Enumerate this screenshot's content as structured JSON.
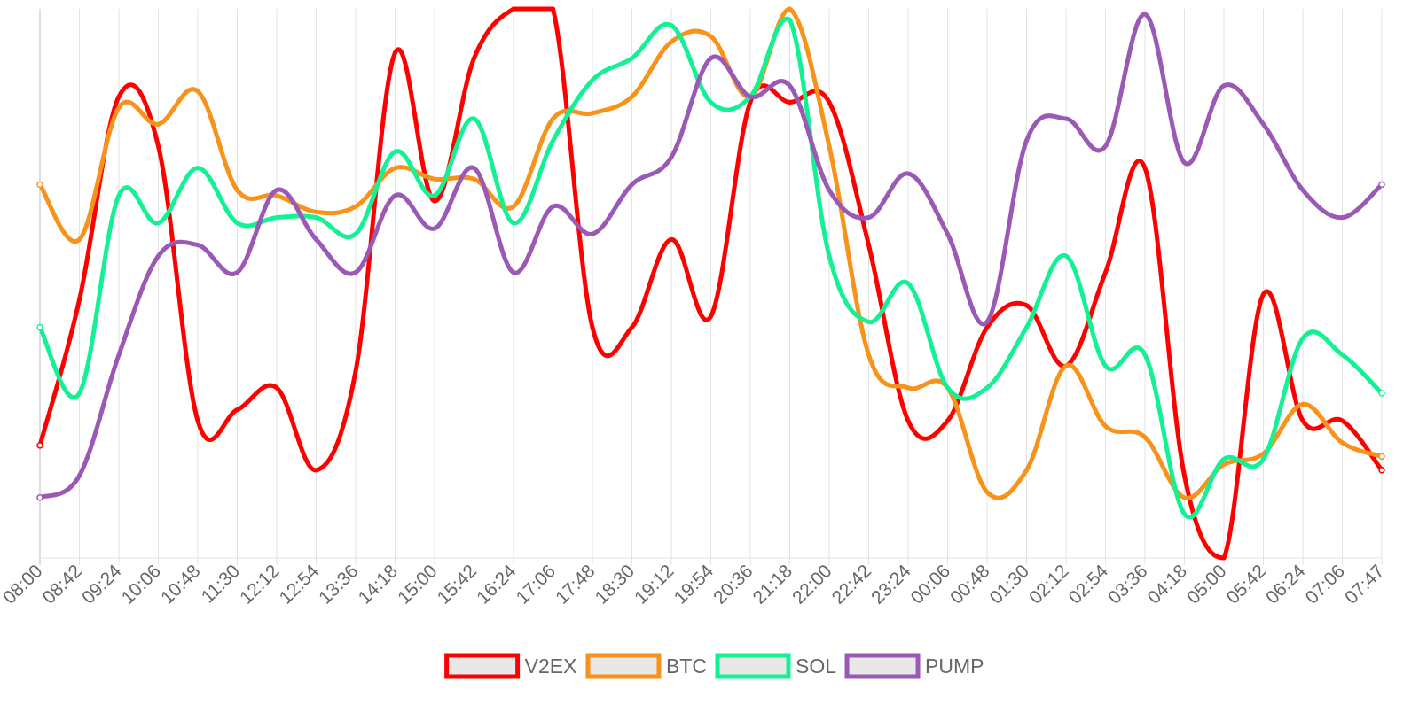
{
  "chart_data": {
    "type": "line",
    "title": "",
    "xlabel": "",
    "ylabel": "",
    "y_axis_visible": false,
    "ylim": [
      0,
      100
    ],
    "grid": "vertical",
    "legend_position": "bottom-center",
    "categories": [
      "08:00",
      "08:42",
      "09:24",
      "10:06",
      "10:48",
      "11:30",
      "12:12",
      "12:54",
      "13:36",
      "14:18",
      "15:00",
      "15:42",
      "16:24",
      "17:06",
      "17:48",
      "18:30",
      "19:12",
      "19:54",
      "20:36",
      "21:18",
      "22:00",
      "22:42",
      "23:24",
      "00:06",
      "00:48",
      "01:30",
      "02:12",
      "02:54",
      "03:36",
      "04:18",
      "05:00",
      "05:42",
      "06:24",
      "07:06",
      "07:47"
    ],
    "series": [
      {
        "name": "V2EX",
        "color": "#ff0000",
        "values": [
          20.5,
          47,
          84,
          75,
          25,
          27,
          31,
          16,
          34,
          92,
          65,
          91,
          100,
          100,
          42,
          42,
          58,
          44,
          83,
          83,
          83,
          57,
          25,
          25,
          42,
          46,
          35,
          52,
          71,
          15,
          0,
          48,
          25,
          25,
          16
        ]
      },
      {
        "name": "BTC",
        "color": "#f7931a",
        "values": [
          68,
          58,
          82,
          79,
          85,
          67,
          66,
          63,
          64,
          71,
          69,
          69,
          64,
          80,
          81,
          84,
          94,
          95,
          84,
          100,
          75,
          37,
          31,
          31,
          12,
          16,
          35,
          24,
          22,
          11,
          17,
          19,
          28,
          21,
          18.5
        ]
      },
      {
        "name": "SOL",
        "color": "#14f195",
        "values": [
          42,
          30,
          66,
          61,
          71,
          61,
          62,
          62,
          59,
          74,
          66,
          80,
          61,
          76,
          87,
          91,
          97,
          83,
          84,
          98,
          55,
          43,
          50,
          31,
          31,
          42,
          55,
          35,
          37,
          8,
          18,
          18,
          40,
          37,
          30
        ]
      },
      {
        "name": "PUMP",
        "color": "#9b59b6",
        "values": [
          11,
          15,
          37,
          55,
          57,
          52,
          67,
          58,
          52,
          66,
          60,
          71,
          52,
          64,
          59,
          68,
          73,
          91,
          84,
          86,
          67,
          62,
          70,
          59,
          43,
          76,
          80,
          75,
          99,
          72,
          86,
          79,
          67,
          62,
          68
        ]
      }
    ]
  }
}
